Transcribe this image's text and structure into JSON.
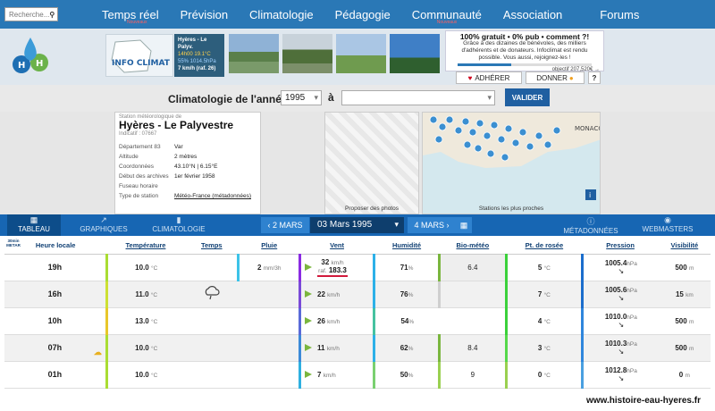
{
  "nav": {
    "search_placeholder": "Recherche...",
    "items": [
      {
        "label": "Temps réel",
        "sub": "Nouveaux"
      },
      {
        "label": "Prévision",
        "sub": ""
      },
      {
        "label": "Climatologie",
        "sub": ""
      },
      {
        "label": "Pédagogie",
        "sub": ""
      },
      {
        "label": "Communauté",
        "sub": "Nouveaux"
      },
      {
        "label": "Association",
        "sub": ""
      },
      {
        "label": "Forums",
        "sub": ""
      }
    ]
  },
  "banner": {
    "infoclimat_label": "INFO CLIMAT",
    "live_station": "Hyères - Le Palyv.",
    "live_line1": "14h00 19.1°C",
    "live_line2": "55% 1014.5hPa",
    "live_line3": "7 km/h (raf. 26)",
    "promo_title": "100% gratuit • 0% pub • comment ?!",
    "promo_text": "Grâce à des dizaines de bénévoles, des milliers d'adhérents et de donateurs. Infoclimat est rendu possible. Vous aussi, rejoignez-les !",
    "promo_goal": "objectif 207,520€ →",
    "adherer": "ADHÉRER",
    "donner": "DONNER",
    "help": "?"
  },
  "clim": {
    "title": "Climatologie de l'année",
    "year": "1995",
    "a_label": "à",
    "to_value": "",
    "validate": "VALIDER"
  },
  "station": {
    "header": "Station météorologique de",
    "name": "Hyères - Le Palyvestre",
    "indicatif": "Indicatif : 07667",
    "rows": [
      {
        "k": "Département 83",
        "v": "Var"
      },
      {
        "k": "Altitude",
        "v": "2 mètres"
      },
      {
        "k": "Coordonnées",
        "v": "43.10°N | 6.15°E"
      },
      {
        "k": "Début des archives",
        "v": "1er février 1958"
      },
      {
        "k": "Fuseau horaire",
        "v": ""
      },
      {
        "k": "Type de station",
        "v": "Météo-France (métadonnées)"
      }
    ]
  },
  "panels": {
    "photos_caption": "Proposer des photos",
    "map_caption": "Stations les plus proches",
    "map_place": "MONACO"
  },
  "tabs": [
    {
      "label": "TABLEAU",
      "icon": "▦"
    },
    {
      "label": "GRAPHIQUES",
      "icon": "↗"
    },
    {
      "label": "CLIMATOLOGIE",
      "icon": "▮"
    },
    {
      "label": "MÉTADONNÉES",
      "icon": "ⓘ"
    },
    {
      "label": "WEBMASTERS",
      "icon": "◉"
    }
  ],
  "datenav": {
    "prev": "‹ 2 MARS",
    "current": "03 Mars 1995",
    "next": "4 MARS ›",
    "calendar_icon": "▦"
  },
  "table": {
    "corner": "30min METAR",
    "headers": [
      "Heure locale",
      "Température",
      "Temps",
      "Pluie",
      "Vent",
      "Humidité",
      "Bio-météo",
      "Pt. de rosée",
      "Pression",
      "Visibilité"
    ],
    "rows": [
      {
        "time": "19h",
        "temp": "10.0",
        "temp_u": "°C",
        "weather": "",
        "rain": "2",
        "rain_u": "mm/3h",
        "wind": "32",
        "wind_u": "km/h",
        "gust_label": "raf.",
        "gust": "183.3",
        "hum": "71",
        "bio": "6.4",
        "dew": "5",
        "press": "1005.4",
        "press_u": "hPa",
        "vis": "500",
        "vis_u": "m"
      },
      {
        "time": "16h",
        "temp": "11.0",
        "temp_u": "°C",
        "weather": "rain-cloud",
        "rain": "",
        "rain_u": "",
        "wind": "22",
        "wind_u": "km/h",
        "gust_label": "",
        "gust": "",
        "hum": "76",
        "bio": "",
        "dew": "7",
        "press": "1005.6",
        "press_u": "hPa",
        "vis": "15",
        "vis_u": "km"
      },
      {
        "time": "10h",
        "temp": "13.0",
        "temp_u": "°C",
        "weather": "",
        "rain": "",
        "rain_u": "",
        "wind": "26",
        "wind_u": "km/h",
        "gust_label": "",
        "gust": "",
        "hum": "54",
        "bio": "",
        "dew": "4",
        "press": "1010.0",
        "press_u": "hPa",
        "vis": "500",
        "vis_u": "m"
      },
      {
        "time": "07h",
        "temp": "10.0",
        "temp_u": "°C",
        "weather": "",
        "rain": "",
        "rain_u": "",
        "wind": "11",
        "wind_u": "km/h",
        "gust_label": "",
        "gust": "",
        "hum": "62",
        "bio": "8.4",
        "dew": "3",
        "press": "1010.3",
        "press_u": "hPa",
        "vis": "500",
        "vis_u": "m"
      },
      {
        "time": "01h",
        "temp": "10.0",
        "temp_u": "°C",
        "weather": "",
        "rain": "",
        "rain_u": "",
        "wind": "7",
        "wind_u": "km/h",
        "gust_label": "",
        "gust": "",
        "hum": "50",
        "bio": "9",
        "dew": "0",
        "press": "1012.8",
        "press_u": "hPa",
        "vis": "0",
        "vis_u": "m"
      }
    ]
  },
  "footer": "www.histoire-eau-hyeres.fr"
}
